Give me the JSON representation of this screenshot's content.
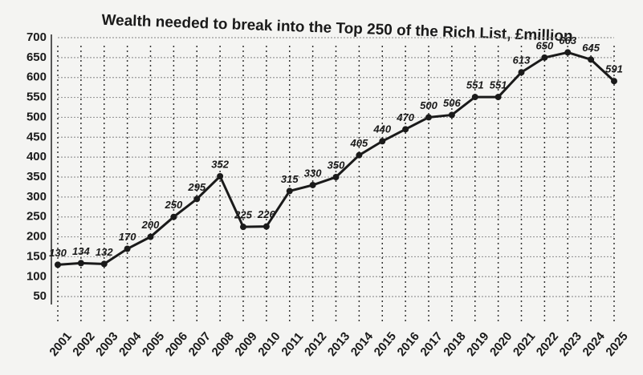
{
  "chart_data": {
    "type": "line",
    "title": "Wealth needed to break into the Top 250 of the Rich List, £million",
    "categories": [
      "2001",
      "2002",
      "2003",
      "2004",
      "2005",
      "2006",
      "2007",
      "2008",
      "2009",
      "2010",
      "2011",
      "2012",
      "2013",
      "2014",
      "2015",
      "2016",
      "2017",
      "2018",
      "2019",
      "2020",
      "2021",
      "2022",
      "2023",
      "2024",
      "2025"
    ],
    "values": [
      130,
      134,
      132,
      170,
      200,
      250,
      295,
      352,
      225,
      226,
      315,
      330,
      350,
      405,
      440,
      470,
      500,
      506,
      551,
      551,
      613,
      650,
      663,
      645,
      591
    ],
    "color": "#1a1a1a",
    "ylim": [
      0,
      700
    ],
    "yticks": [
      50,
      100,
      150,
      200,
      250,
      300,
      350,
      400,
      450,
      500,
      550,
      600,
      650,
      700
    ],
    "grid": true
  }
}
